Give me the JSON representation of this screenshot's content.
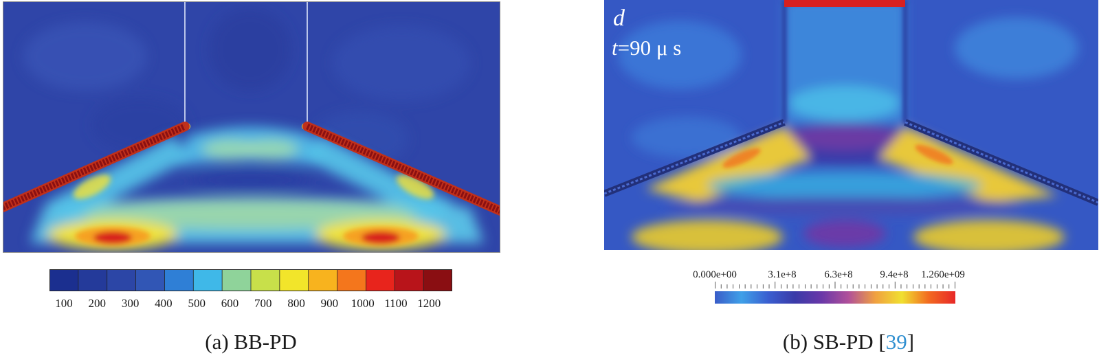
{
  "panel_a": {
    "caption": "(a) BB-PD",
    "colorbar": {
      "ticks": [
        "100",
        "200",
        "300",
        "400",
        "500",
        "600",
        "700",
        "800",
        "900",
        "1000",
        "1100",
        "1200"
      ],
      "colors": [
        "#1b2f8f",
        "#243a9a",
        "#2c46a6",
        "#3156b5",
        "#2f7fd6",
        "#3fb8e8",
        "#8fd39a",
        "#c8e04a",
        "#f2e52a",
        "#f8b31e",
        "#f4761c",
        "#e8241c",
        "#b8141a",
        "#8a0e12"
      ]
    }
  },
  "panel_b": {
    "overlay_label": "d",
    "overlay_time_var": "t",
    "overlay_time_rest": "=90 μ s",
    "caption_main": "(b) SB-PD [",
    "caption_ref": "39",
    "caption_end": "]",
    "colorbar": {
      "ticks": [
        "0.000e+00",
        "3.1e+8",
        "6.3e+8",
        "9.4e+8",
        "1.260e+09"
      ],
      "colors": [
        "#3a5cc8",
        "#3fa0e8",
        "#3a5ed0",
        "#3a3aa8",
        "#6a38a8",
        "#b0509a",
        "#f0a040",
        "#f0e030",
        "#f26a20",
        "#e82828"
      ]
    }
  }
}
